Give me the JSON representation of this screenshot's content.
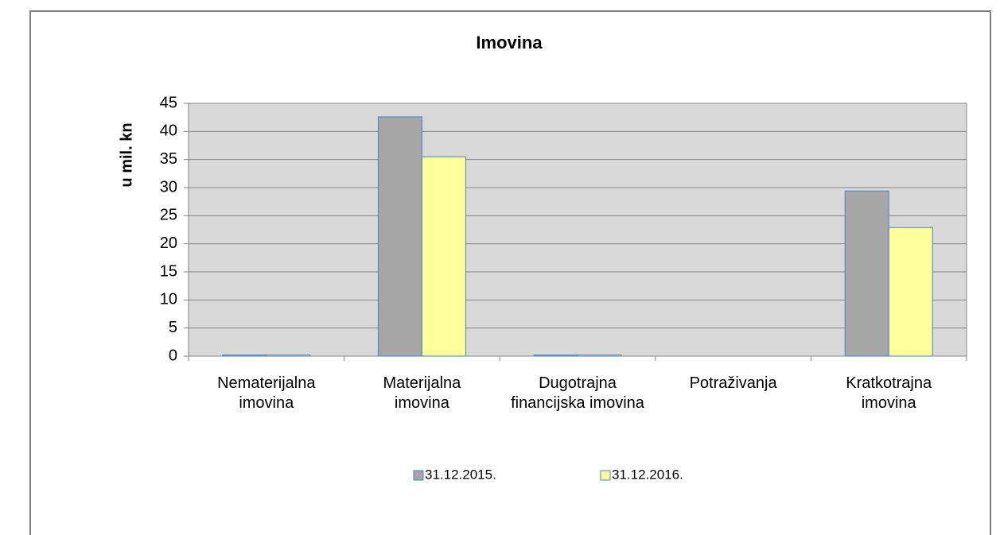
{
  "chart_data": {
    "type": "bar",
    "title": "Imovina",
    "y_label": "u mil. kn",
    "categories": [
      "Nematerijalna imovina",
      "Materijalna imovina",
      "Dugotrajna financijska imovina",
      "Potraživanja",
      "Kratkotrajna imovina"
    ],
    "series": [
      {
        "name": "31.12.2015.",
        "color": "#a6a6a6",
        "values": [
          0.2,
          42.6,
          0.2,
          0,
          29.4
        ]
      },
      {
        "name": "31.12.2016.",
        "color": "#ffff99",
        "values": [
          0.2,
          35.5,
          0.2,
          0,
          22.9
        ]
      }
    ],
    "ylim": [
      0,
      45
    ],
    "yticks": [
      0,
      5,
      10,
      15,
      20,
      25,
      30,
      35,
      40,
      45
    ],
    "grid": true,
    "legend": "bottom"
  }
}
